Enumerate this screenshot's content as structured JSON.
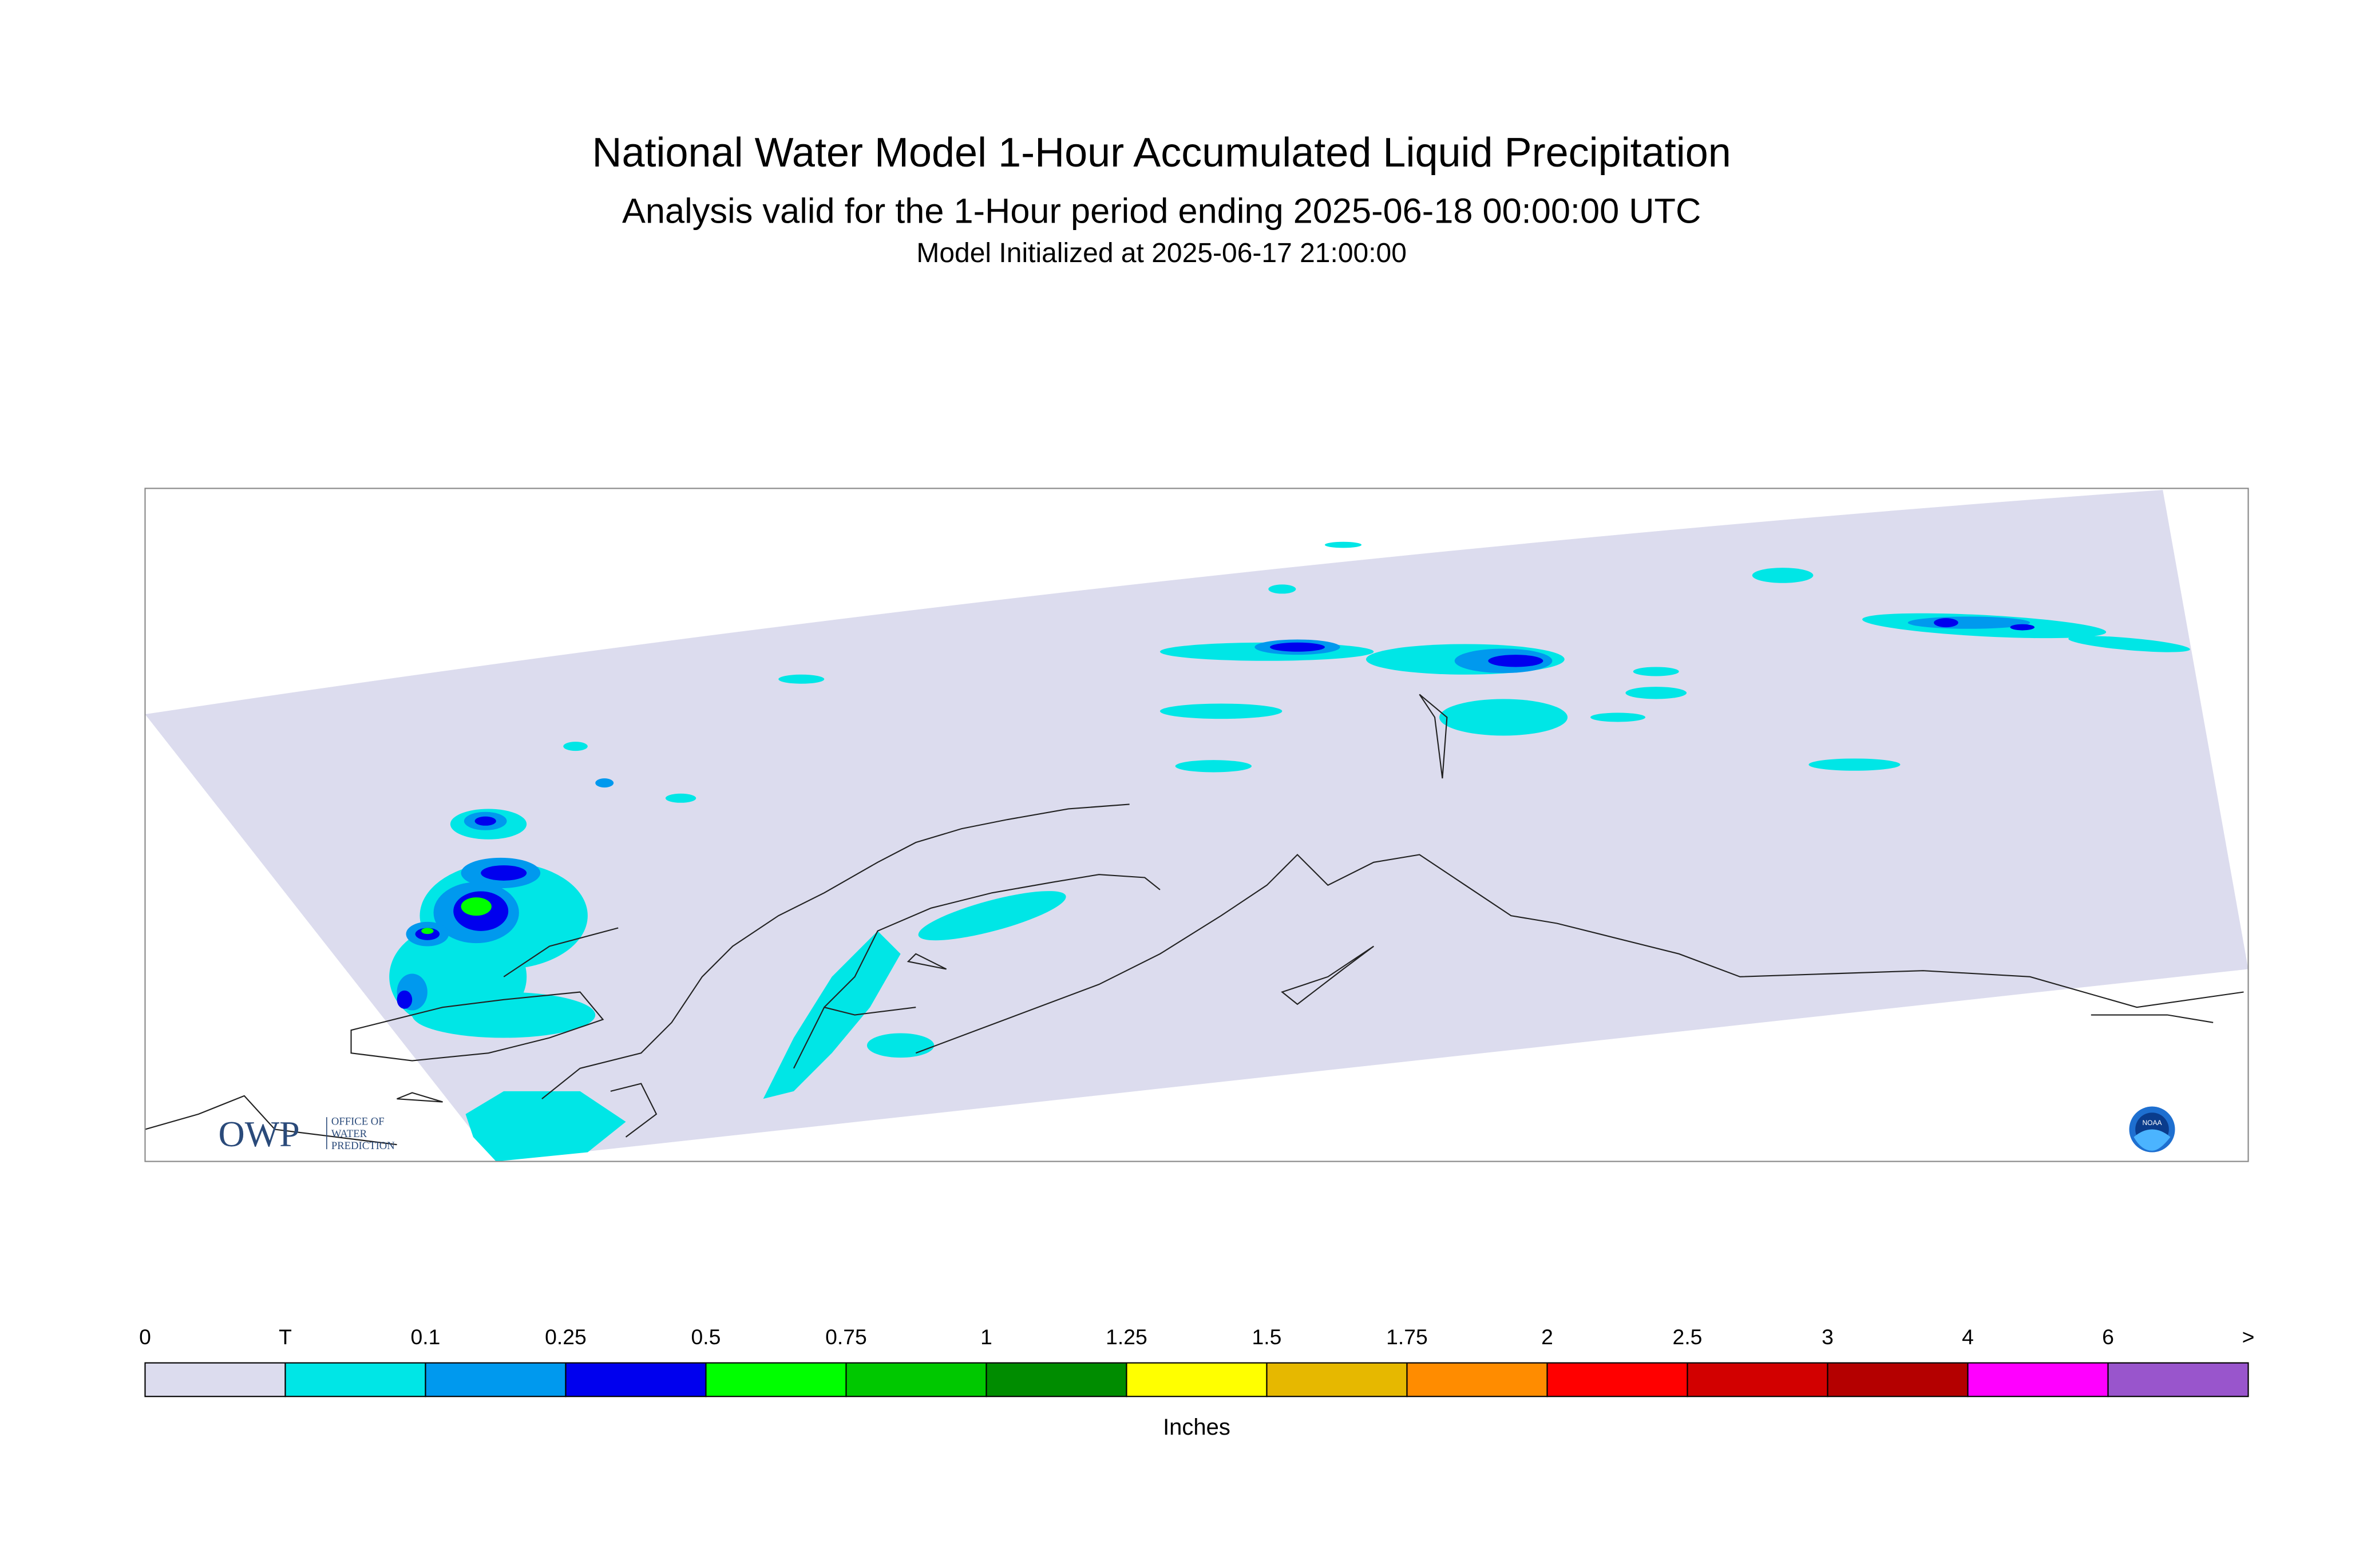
{
  "header": {
    "title": "National Water Model 1-Hour Accumulated Liquid Precipitation",
    "subtitle": "Analysis valid for the 1-Hour period ending 2025-06-18 00:00:00 UTC",
    "initialized": "Model Initialized at 2025-06-17 21:00:00"
  },
  "legend": {
    "labels": [
      "0",
      "T",
      "0.1",
      "0.25",
      "0.5",
      "0.75",
      "1",
      "1.25",
      "1.5",
      "1.75",
      "2",
      "2.5",
      "3",
      "4",
      "6",
      ">"
    ],
    "colors": [
      "#dcdcee",
      "#00e6e6",
      "#0099ee",
      "#0000ee",
      "#00ff00",
      "#00c800",
      "#008c00",
      "#ffff00",
      "#e6b800",
      "#ff8c00",
      "#ff0000",
      "#d20000",
      "#b40000",
      "#ff00ff",
      "#9955cc"
    ],
    "unit": "Inches"
  },
  "logos": {
    "owp": "OWP",
    "owp_lines": [
      "OFFICE OF",
      "WATER",
      "PREDICTION"
    ],
    "noaa": "NOAA"
  }
}
